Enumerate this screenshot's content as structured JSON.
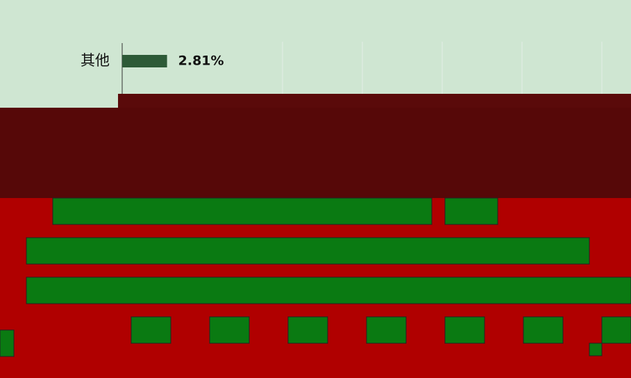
{
  "chart_data": {
    "type": "barh",
    "categories": [
      "其他"
    ],
    "values": [
      2.81
    ],
    "value_labels": [
      "2.81%"
    ],
    "color": "#2d5a37",
    "xlim": [
      0,
      30
    ]
  }
}
